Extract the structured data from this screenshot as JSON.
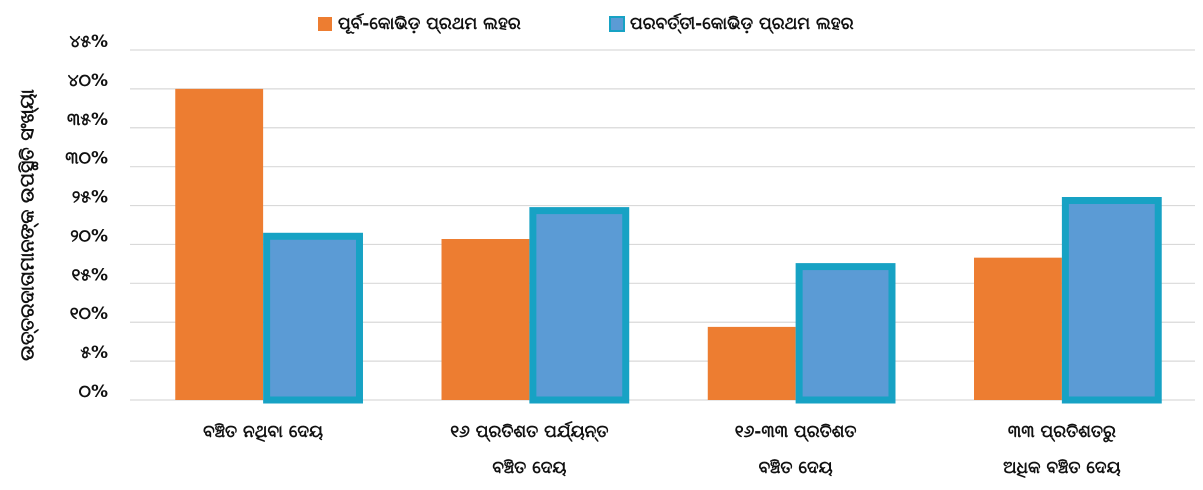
{
  "chart_data": {
    "type": "bar",
    "y_label": "ଉତ୍ତରଦାତାମାନଙ୍କ ଉପସ୍ଥିତି ସଂଖ୍ୟା",
    "categories": [
      [
        "ବଞ୍ଚିତ ନଥିବା ଦେୟ"
      ],
      [
        "୧୬ ପ୍ରତିଶତ ପର୍ଯ୍ୟନ୍ତ",
        "ବଞ୍ଚିତ ଦେୟ"
      ],
      [
        "୧୬-୩୩ ପ୍ରତିଶତ",
        "ବଞ୍ଚିତ ଦେୟ"
      ],
      [
        "୩୩ ପ୍ରତିଶତରୁ",
        "ଅଧିକ ବଞ୍ଚିତ ଦେୟ"
      ]
    ],
    "series": [
      {
        "name": "ପୂର୍ବ-କୋଭିଡ଼ ପ୍ରଥମ ଲହର",
        "color": "#ed7d31",
        "values": [
          40,
          20.7,
          9.4,
          18.3
        ]
      },
      {
        "name": "ପରବର୍ତ୍ତୀ-କୋଭିଡ଼ ପ୍ରଥମ ଲହର",
        "color": "#5b9bd5",
        "border_color": "#17a2c4",
        "values": [
          21.5,
          24.8,
          17.6,
          26.1
        ]
      }
    ],
    "ylim": [
      0,
      45
    ],
    "yticks": [
      {
        "value": 0,
        "label": "୦%"
      },
      {
        "value": 5,
        "label": "୫%"
      },
      {
        "value": 10,
        "label": "୧୦%"
      },
      {
        "value": 15,
        "label": "୧୫%"
      },
      {
        "value": 20,
        "label": "୨୦%"
      },
      {
        "value": 25,
        "label": "୨୫%"
      },
      {
        "value": 30,
        "label": "୩୦%"
      },
      {
        "value": 35,
        "label": "୩୫%"
      },
      {
        "value": 40,
        "label": "୪୦%"
      },
      {
        "value": 45,
        "label": "୪୫%"
      }
    ],
    "grid": true,
    "legend": "top"
  }
}
